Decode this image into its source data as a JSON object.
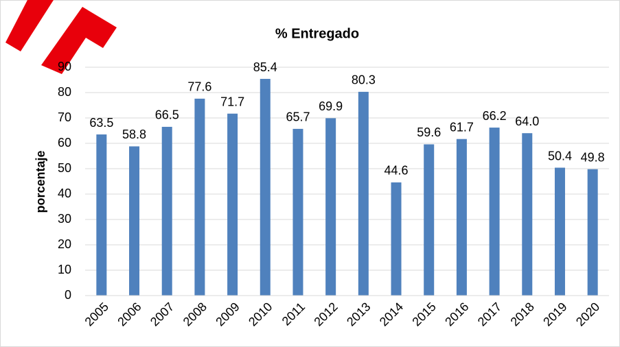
{
  "chart_data": {
    "type": "bar",
    "title": "% Entregado",
    "y_label": "porcentaje",
    "categories": [
      "2005",
      "2006",
      "2007",
      "2008",
      "2009",
      "2010",
      "2011",
      "2012",
      "2013",
      "2014",
      "2015",
      "2016",
      "2017",
      "2018",
      "2019",
      "2020"
    ],
    "values": [
      63.5,
      58.8,
      66.5,
      77.6,
      71.7,
      85.4,
      65.7,
      69.9,
      80.3,
      44.6,
      59.6,
      61.7,
      66.2,
      64.0,
      50.4,
      49.8
    ],
    "value_labels": [
      "63.5",
      "58.8",
      "66.5",
      "77.6",
      "71.7",
      "85.4",
      "65.7",
      "69.9",
      "80.3",
      "44.6",
      "59.6",
      "61.7",
      "66.2",
      "64.0",
      "50.4",
      "49.8"
    ],
    "color": "#4f81bd",
    "ylim": [
      0,
      90
    ],
    "yticks": [
      0,
      10,
      20,
      30,
      40,
      50,
      60,
      70,
      80,
      90
    ],
    "grid": true
  }
}
